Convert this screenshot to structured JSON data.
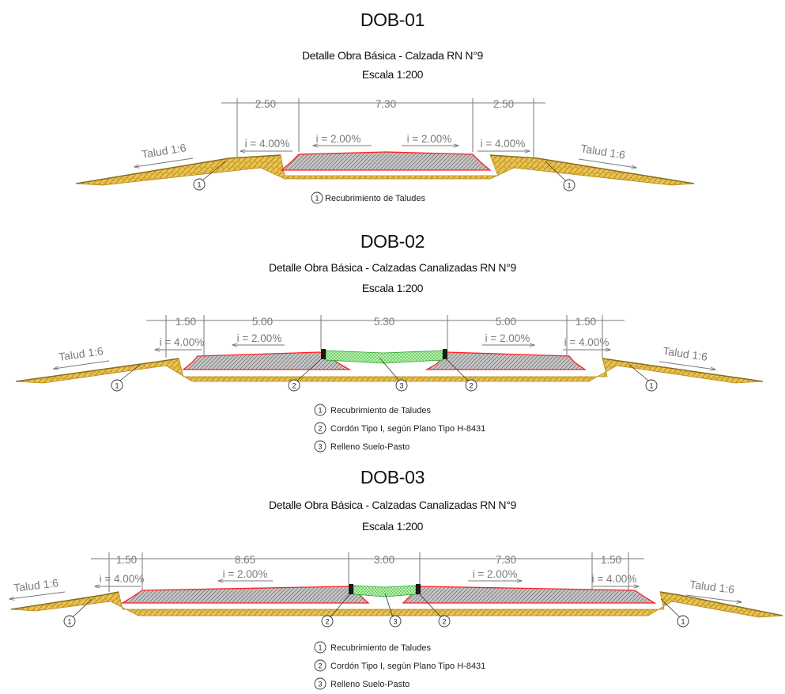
{
  "sections": [
    {
      "code": "DOB-01",
      "description": "Detalle Obra Básica - Calzada RN N°9",
      "scale": "Escala 1:200",
      "dimensions": [
        "2.50",
        "7.30",
        "2.50"
      ],
      "slopes": [
        "i = 4.00%",
        "i = 2.00%",
        "i = 2.00%",
        "i = 4.00%"
      ],
      "talud_left": "Talud 1:6",
      "talud_right": "Talud 1:6",
      "callout_numbers": [
        "1",
        "1"
      ],
      "legend": [
        {
          "num": "1",
          "text": "Recubrimiento de Taludes"
        }
      ]
    },
    {
      "code": "DOB-02",
      "description": "Detalle Obra Básica - Calzadas Canalizadas RN N°9",
      "scale": "Escala 1:200",
      "dimensions": [
        "1.50",
        "5.00",
        "5.30",
        "5.00",
        "1.50"
      ],
      "slopes": [
        "i = 4.00%",
        "i = 2.00%",
        "i = 2.00%",
        "i = 4.00%"
      ],
      "talud_left": "Talud 1:6",
      "talud_right": "Talud 1:6",
      "callout_numbers": [
        "1",
        "2",
        "3",
        "2",
        "1"
      ],
      "legend": [
        {
          "num": "1",
          "text": "Recubrimiento de Taludes"
        },
        {
          "num": "2",
          "text": "Cordón Tipo I, según Plano Tipo H-8431"
        },
        {
          "num": "3",
          "text": "Relleno Suelo-Pasto"
        }
      ]
    },
    {
      "code": "DOB-03",
      "description": "Detalle Obra Básica - Calzadas Canalizadas RN N°9",
      "scale": "Escala 1:200",
      "dimensions": [
        "1.50",
        "8.65",
        "3.00",
        "7.30",
        "1.50"
      ],
      "slopes": [
        "i = 4.00%",
        "i = 2.00%",
        "i = 2.00%",
        "i = 4.00%"
      ],
      "talud_left": "Talud 1:6",
      "talud_right": "Talud 1:6",
      "callout_numbers": [
        "1",
        "2",
        "3",
        "2",
        "1"
      ],
      "legend": [
        {
          "num": "1",
          "text": "Recubrimiento de Taludes"
        },
        {
          "num": "2",
          "text": "Cordón Tipo I, según Plano Tipo H-8431"
        },
        {
          "num": "3",
          "text": "Relleno Suelo-Pasto"
        }
      ]
    }
  ]
}
